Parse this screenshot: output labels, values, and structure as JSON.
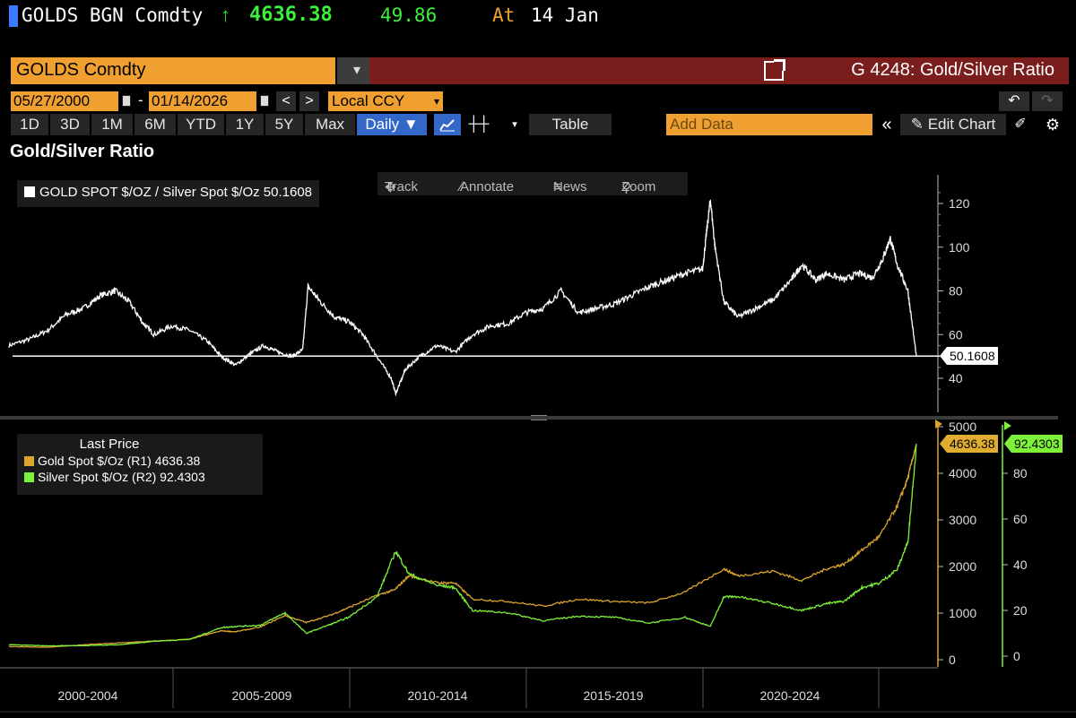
{
  "ticker": {
    "security": "GOLDS BGN Comdty",
    "direction_icon": "up-arrow",
    "last": "4636.38",
    "change": "49.86",
    "at_label": "At",
    "date": "14 Jan"
  },
  "security_bar": {
    "input_value": "GOLDS Comdty",
    "dropdown_icon": "dropdown-icon",
    "function_title": "G 4248: Gold/Silver Ratio"
  },
  "date_range": {
    "start": "05/27/2000",
    "separator": "-",
    "end": "01/14/2026",
    "prev": "<",
    "next": ">",
    "currency": "Local CCY"
  },
  "toolbar": {
    "periods": [
      "1D",
      "3D",
      "1M",
      "6M",
      "YTD",
      "1Y",
      "5Y",
      "Max"
    ],
    "frequency": "Daily ▼",
    "table": "Table",
    "add_data_placeholder": "Add Data",
    "collapse": "«",
    "edit_chart": "Edit Chart"
  },
  "chart_title": "Gold/Silver Ratio",
  "upper_panel": {
    "legend": "GOLD SPOT $/OZ / Silver Spot $/Oz 50.1608",
    "tools": [
      "Track",
      "Annotate",
      "News",
      "Zoom"
    ],
    "last_tag": "50.1608",
    "color": "#ffffff"
  },
  "lower_panel": {
    "legend_header": "Last Price",
    "gold_legend": "Gold Spot $/Oz  (R1)  4636.38",
    "silver_legend": "Silver Spot $/Oz  (R2) 92.4303",
    "gold_tag": "4636.38",
    "silver_tag": "92.4303",
    "gold_color": "#d9a52c",
    "silver_color": "#7df23a"
  },
  "x_axis_labels": [
    "2000-2004",
    "2005-2009",
    "2010-2014",
    "2015-2019",
    "2020-2024"
  ],
  "chart_data": [
    {
      "type": "line",
      "title": "Gold/Silver Ratio",
      "series": [
        {
          "name": "GOLD SPOT $/OZ / Silver Spot $/Oz",
          "x": [
            2000.4,
            2001.0,
            2001.5,
            2002.0,
            2002.5,
            2003.0,
            2003.4,
            2003.8,
            2004.2,
            2004.5,
            2005.0,
            2005.5,
            2006.0,
            2006.4,
            2006.8,
            2007.2,
            2007.6,
            2008.0,
            2008.4,
            2008.7,
            2008.85,
            2009.2,
            2009.6,
            2010.0,
            2010.4,
            2010.8,
            2011.2,
            2011.33,
            2011.6,
            2012.0,
            2012.5,
            2013.0,
            2013.5,
            2014.0,
            2014.5,
            2015.0,
            2015.5,
            2016.0,
            2016.5,
            2017.0,
            2017.5,
            2018.0,
            2018.5,
            2019.0,
            2019.5,
            2020.0,
            2020.1,
            2020.22,
            2020.35,
            2020.6,
            2021.0,
            2021.5,
            2022.0,
            2022.5,
            2022.8,
            2023.2,
            2023.5,
            2024.0,
            2024.4,
            2024.8,
            2025.1,
            2025.3,
            2025.5,
            2025.8,
            2026.04
          ],
          "values": [
            55,
            58,
            62,
            69,
            72,
            78,
            80,
            75,
            65,
            60,
            64,
            62,
            57,
            50,
            46,
            51,
            55,
            52,
            50,
            53,
            82,
            75,
            68,
            66,
            60,
            50,
            40,
            33,
            44,
            50,
            55,
            52,
            60,
            64,
            65,
            70,
            72,
            80,
            70,
            72,
            74,
            78,
            82,
            85,
            88,
            90,
            105,
            122,
            100,
            75,
            68,
            72,
            76,
            85,
            92,
            85,
            88,
            85,
            88,
            86,
            95,
            104,
            92,
            80,
            50.16
          ]
        }
      ],
      "xlim": [
        2000.4,
        2026.04
      ],
      "ylim": [
        30,
        130
      ],
      "y_ticks": [
        40,
        60,
        80,
        100,
        120
      ],
      "reference_line": 50.1608,
      "grid": false,
      "legend_position": "top-left"
    },
    {
      "type": "line",
      "series": [
        {
          "name": "Gold Spot $/Oz (R1)",
          "axis": "R1",
          "x": [
            2000.4,
            2001.5,
            2002.5,
            2003.5,
            2004.5,
            2005.5,
            2006.4,
            2006.8,
            2007.5,
            2008.2,
            2008.8,
            2009.5,
            2010.0,
            2010.8,
            2011.3,
            2011.7,
            2012.5,
            2013.0,
            2013.5,
            2014.5,
            2015.5,
            2016.5,
            2017.5,
            2018.5,
            2019.5,
            2020.6,
            2021.0,
            2022.0,
            2022.8,
            2023.5,
            2024.0,
            2024.5,
            2025.0,
            2025.5,
            2025.8,
            2026.04
          ],
          "values": [
            280,
            270,
            320,
            360,
            400,
            440,
            620,
            600,
            700,
            950,
            800,
            960,
            1120,
            1380,
            1500,
            1800,
            1650,
            1650,
            1300,
            1250,
            1150,
            1300,
            1250,
            1220,
            1450,
            1950,
            1800,
            1900,
            1700,
            1950,
            2050,
            2350,
            2650,
            3300,
            3900,
            4636.38
          ]
        },
        {
          "name": "Silver Spot $/Oz (R2)",
          "axis": "R2",
          "x": [
            2000.4,
            2001.5,
            2002.5,
            2003.5,
            2004.5,
            2005.5,
            2006.4,
            2006.8,
            2007.5,
            2008.2,
            2008.8,
            2009.5,
            2010.0,
            2010.8,
            2011.33,
            2011.7,
            2012.5,
            2013.0,
            2013.5,
            2014.5,
            2015.5,
            2016.5,
            2017.5,
            2018.5,
            2019.5,
            2020.22,
            2020.6,
            2021.0,
            2022.0,
            2022.8,
            2023.5,
            2024.0,
            2024.5,
            2025.0,
            2025.5,
            2025.8,
            2026.04
          ],
          "values": [
            5,
            4.5,
            4.6,
            5,
            6.5,
            7.3,
            12.5,
            13,
            13.5,
            19,
            10,
            14,
            17,
            26,
            46,
            36,
            31,
            30,
            20,
            19,
            15.5,
            17.5,
            17,
            14.5,
            17,
            13,
            26,
            26,
            23,
            20,
            23,
            24,
            30,
            32,
            38,
            50,
            92.4303
          ]
        }
      ],
      "xlim": [
        2000.4,
        2026.04
      ],
      "y_left_lim": [
        0,
        5000
      ],
      "y_left_ticks": [
        0,
        1000,
        2000,
        3000,
        4000,
        5000
      ],
      "y_right_lim": [
        0,
        100
      ],
      "y_right_ticks": [
        0,
        20,
        40,
        60,
        80
      ],
      "grid": false,
      "legend_position": "top-left"
    }
  ]
}
